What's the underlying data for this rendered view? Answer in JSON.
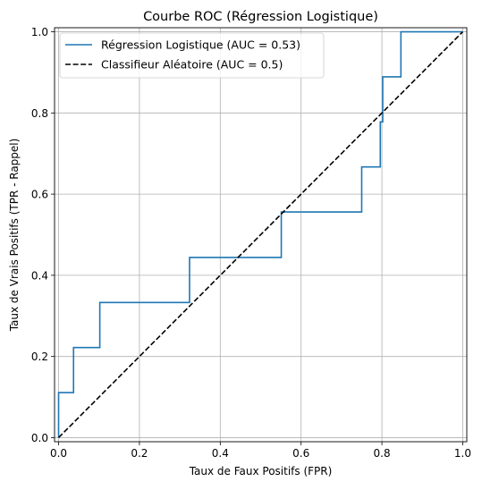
{
  "chart_data": {
    "type": "line",
    "title": "Courbe ROC (Régression Logistique)",
    "xlabel": "Taux de Faux Positifs (FPR)",
    "ylabel": "Taux de Vrais Positifs (TPR - Rappel)",
    "xlim": [
      -0.01,
      1.01
    ],
    "ylim": [
      -0.01,
      1.01
    ],
    "xticks": [
      0.0,
      0.2,
      0.4,
      0.6,
      0.8,
      1.0
    ],
    "yticks": [
      0.0,
      0.2,
      0.4,
      0.6,
      0.8,
      1.0
    ],
    "xtick_labels": [
      "0.0",
      "0.2",
      "0.4",
      "0.6",
      "0.8",
      "1.0"
    ],
    "ytick_labels": [
      "0.0",
      "0.2",
      "0.4",
      "0.6",
      "0.8",
      "1.0"
    ],
    "grid": true,
    "legend_position": "top-left",
    "series": [
      {
        "name": "Régression Logistique (AUC = 0.53)",
        "color": "#1f77b4",
        "style": "solid",
        "x": [
          0.0,
          0.0,
          0.0,
          0.037,
          0.037,
          0.102,
          0.102,
          0.324,
          0.324,
          0.551,
          0.551,
          0.75,
          0.75,
          0.796,
          0.796,
          0.802,
          0.802,
          0.847,
          0.847,
          1.0
        ],
        "y": [
          0.0,
          0.111,
          0.111,
          0.111,
          0.222,
          0.222,
          0.333,
          0.333,
          0.444,
          0.444,
          0.556,
          0.556,
          0.667,
          0.667,
          0.778,
          0.778,
          0.889,
          0.889,
          1.0,
          1.0
        ]
      },
      {
        "name": "Classifieur Aléatoire (AUC = 0.5)",
        "color": "#000000",
        "style": "dashed",
        "x": [
          0.0,
          1.0
        ],
        "y": [
          0.0,
          1.0
        ]
      }
    ]
  }
}
